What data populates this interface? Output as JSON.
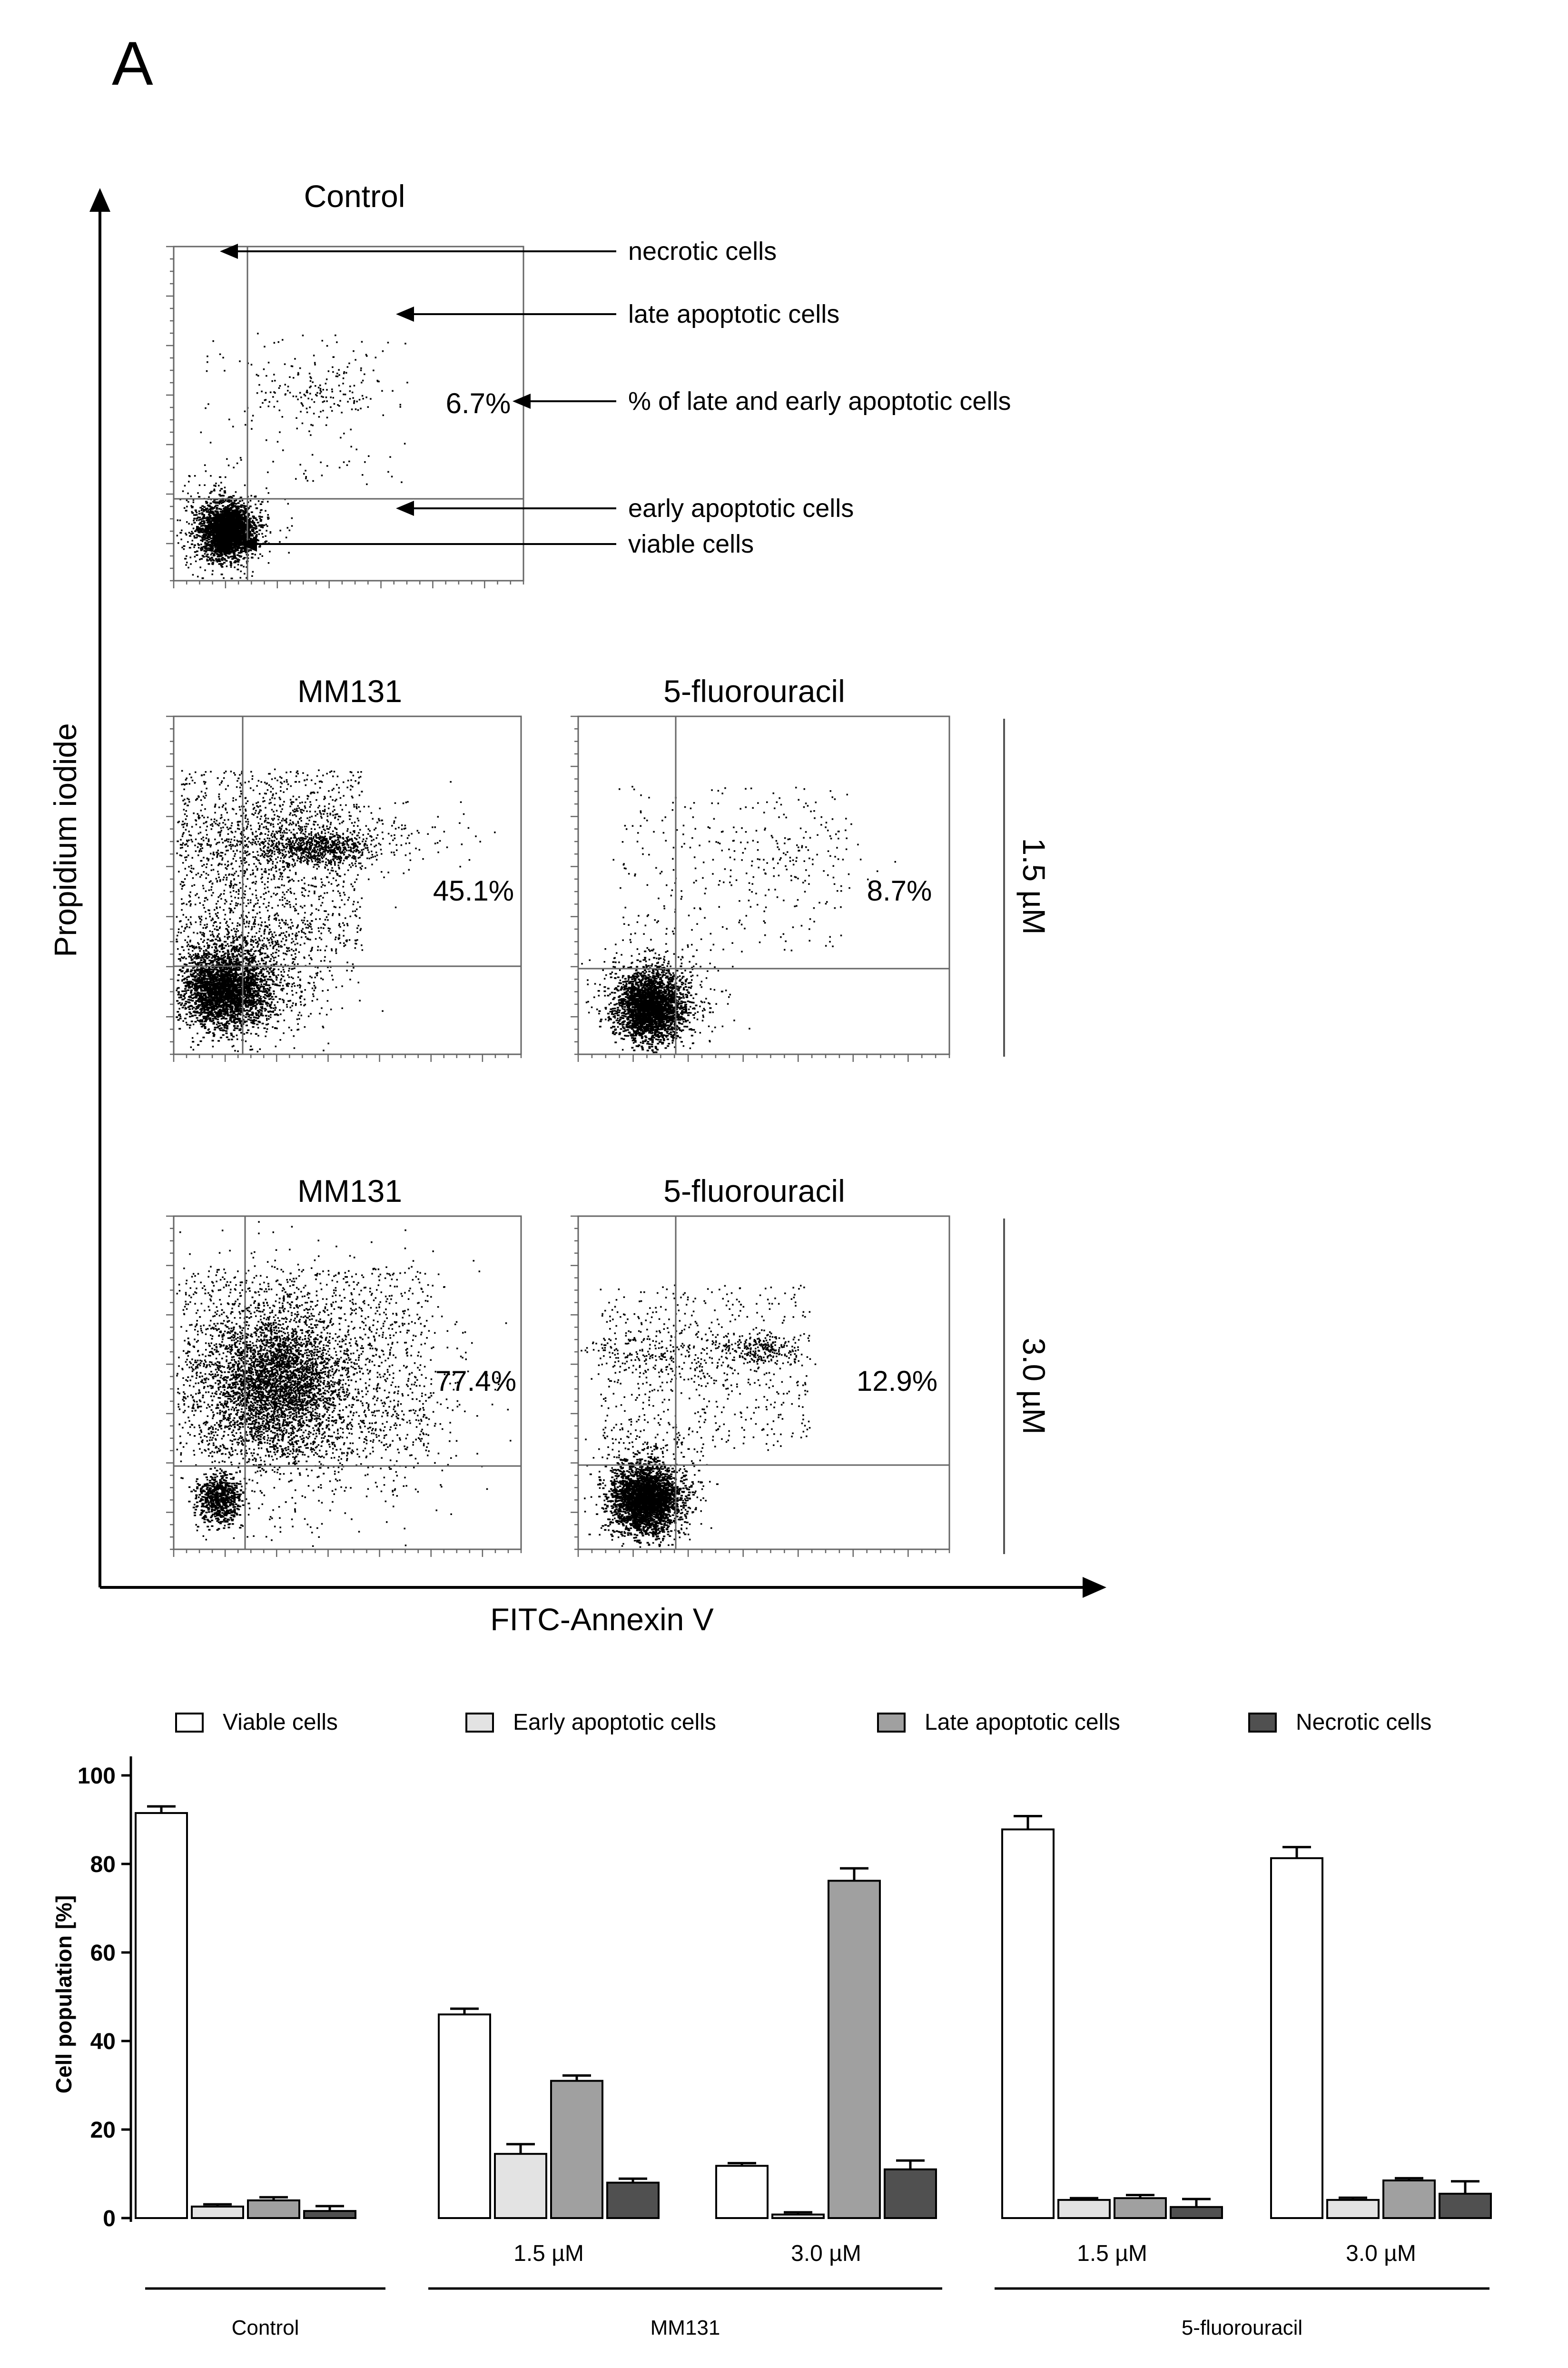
{
  "panel_label": "A",
  "flow": {
    "y_axis_label": "Propidium iodide",
    "x_axis_label": "FITC-Annexin V",
    "control_title": "Control",
    "control_percent": "6.7%",
    "annotations": {
      "necrotic": "necrotic cells",
      "late": "late apoptotic cells",
      "percent": "% of late and early apoptotic cells",
      "early": "early apoptotic cells",
      "viable": "viable cells"
    },
    "col_mm131": "MM131",
    "col_5fu": "5-fluorouracil",
    "row1_label": "1.5 µM",
    "row2_label": "3.0 µM",
    "mm131_15_percent": "45.1%",
    "fu_15_percent": "8.7%",
    "mm131_30_percent": "77.4%",
    "fu_30_percent": "12.9%"
  },
  "chart_data": {
    "type": "bar",
    "ylabel": "Cell population [%]",
    "xlabel": "",
    "ylim": [
      0,
      100
    ],
    "yticks": [
      "0",
      "20",
      "40",
      "60",
      "80",
      "100"
    ],
    "categories": [
      "Control",
      "MM131 1.5 µM",
      "MM131 3.0 µM",
      "5-fluorouracil 1.5 µM",
      "5-fluorouracil 3.0 µM"
    ],
    "sub_labels": [
      "",
      "1.5 µM",
      "3.0 µM",
      "1.5 µM",
      "3.0 µM"
    ],
    "groups": [
      "Control",
      "MM131",
      "5-fluorouracil"
    ],
    "series": [
      {
        "name": "Viable cells",
        "color": "#ffffff",
        "values": [
          91.5,
          46,
          11.8,
          87.8,
          81.3
        ],
        "errors": [
          1.5,
          1.3,
          0.6,
          3.0,
          2.5
        ]
      },
      {
        "name": "Early apoptotic cells",
        "color": "#e3e3e3",
        "values": [
          2.6,
          14.5,
          0.8,
          4.1,
          4.1
        ],
        "errors": [
          0.5,
          2.2,
          0.5,
          0.4,
          0.5
        ]
      },
      {
        "name": "Late apoptotic cells",
        "color": "#a0a0a0",
        "values": [
          4.0,
          31,
          76.2,
          4.5,
          8.5
        ],
        "errors": [
          0.7,
          1.2,
          2.8,
          0.7,
          0.5
        ]
      },
      {
        "name": "Necrotic cells",
        "color": "#505050",
        "values": [
          1.6,
          8.0,
          11.0,
          2.5,
          5.5
        ],
        "errors": [
          1.1,
          0.9,
          2.0,
          1.8,
          2.8
        ]
      }
    ]
  }
}
